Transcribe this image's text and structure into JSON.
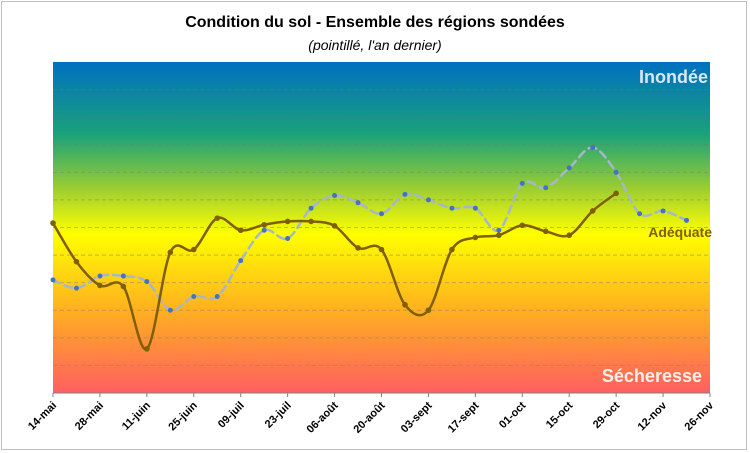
{
  "chart": {
    "title": "Condition du sol - Ensemble des régions sondées",
    "subtitle": "(pointillé, l'an dernier)",
    "label_top": "Inondée",
    "label_middle": "Adéquate",
    "label_bottom": "Sécheresse"
  },
  "colors": {
    "current_line": "#7f5f00",
    "current_marker": "#7f5f00",
    "last_year_line": "#a6b6cc",
    "last_year_marker": "#4472c4",
    "gradient": [
      "#0070c0",
      "#ffff00",
      "#ff6060"
    ]
  },
  "chart_data": {
    "type": "line",
    "title": "Condition du sol - Ensemble des régions sondées",
    "subtitle": "(pointillé, l'an dernier)",
    "categories": [
      "14-mai",
      "28-mai",
      "11-juin",
      "25-juin",
      "09-juil",
      "23-juil",
      "06-août",
      "20-août",
      "03-sept",
      "17-sept",
      "01-oct",
      "15-oct",
      "29-oct",
      "12-nov",
      "26-nov"
    ],
    "ylim": [
      1,
      7
    ],
    "y_ticks": [
      1,
      1.5,
      2,
      2.5,
      3,
      3.5,
      4,
      4.5,
      5,
      5.5,
      6,
      6.5,
      7
    ],
    "grid": true,
    "series": [
      {
        "style": "solid",
        "x": [
          0,
          0.5,
          1,
          1.5,
          2,
          2.5,
          3,
          3.5,
          4,
          4.5,
          5,
          5.5,
          6,
          6.5,
          7,
          7.5,
          8,
          8.5,
          9,
          9.5,
          10,
          10.5,
          11,
          11.5,
          12
        ],
        "values": [
          4.08,
          3.38,
          2.95,
          2.93,
          1.8,
          3.55,
          3.6,
          4.17,
          3.95,
          4.05,
          4.11,
          4.11,
          4.03,
          3.63,
          3.6,
          2.6,
          2.5,
          3.6,
          3.82,
          3.86,
          4.04,
          3.93,
          3.86,
          4.3,
          4.62
        ]
      },
      {
        "style": "dashed",
        "x": [
          0,
          0.5,
          1,
          1.5,
          2,
          2.5,
          3,
          3.5,
          4,
          4.5,
          5,
          5.5,
          6,
          6.5,
          7,
          7.5,
          8,
          8.5,
          9,
          9.5,
          10,
          10.5,
          11,
          11.5,
          12,
          12.5,
          13,
          13.5
        ],
        "values": [
          3.05,
          2.9,
          3.12,
          3.12,
          3.02,
          2.5,
          2.75,
          2.75,
          3.4,
          3.95,
          3.8,
          4.35,
          4.58,
          4.45,
          4.25,
          4.6,
          4.5,
          4.35,
          4.35,
          3.95,
          4.8,
          4.72,
          5.08,
          5.45,
          5.0,
          4.25,
          4.3,
          4.13
        ]
      }
    ]
  }
}
